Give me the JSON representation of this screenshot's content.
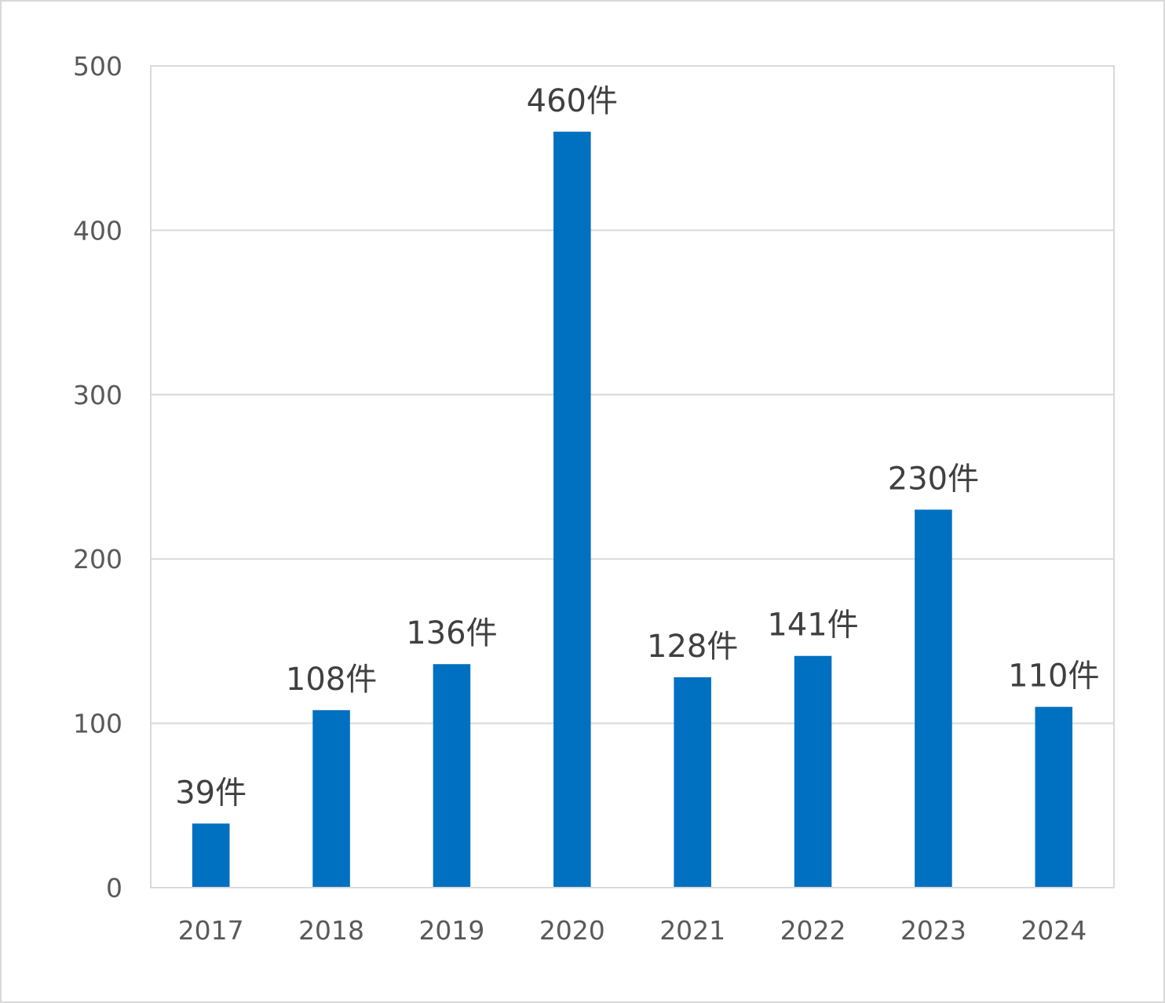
{
  "chart_data": {
    "type": "bar",
    "title": "",
    "xlabel": "",
    "ylabel": "",
    "categories": [
      "2017",
      "2018",
      "2019",
      "2020",
      "2021",
      "2022",
      "2023",
      "2024"
    ],
    "values": [
      39,
      108,
      136,
      460,
      128,
      141,
      230,
      110
    ],
    "data_labels": [
      "39件",
      "108件",
      "136件",
      "460件",
      "128件",
      "141件",
      "230件",
      "110件"
    ],
    "ylim": [
      0,
      500
    ],
    "yticks": [
      "0",
      "100",
      "200",
      "300",
      "400",
      "500"
    ],
    "grid": true,
    "legend": "none",
    "bar_color": "#0070c0",
    "grid_color": "#d9d9d9"
  }
}
